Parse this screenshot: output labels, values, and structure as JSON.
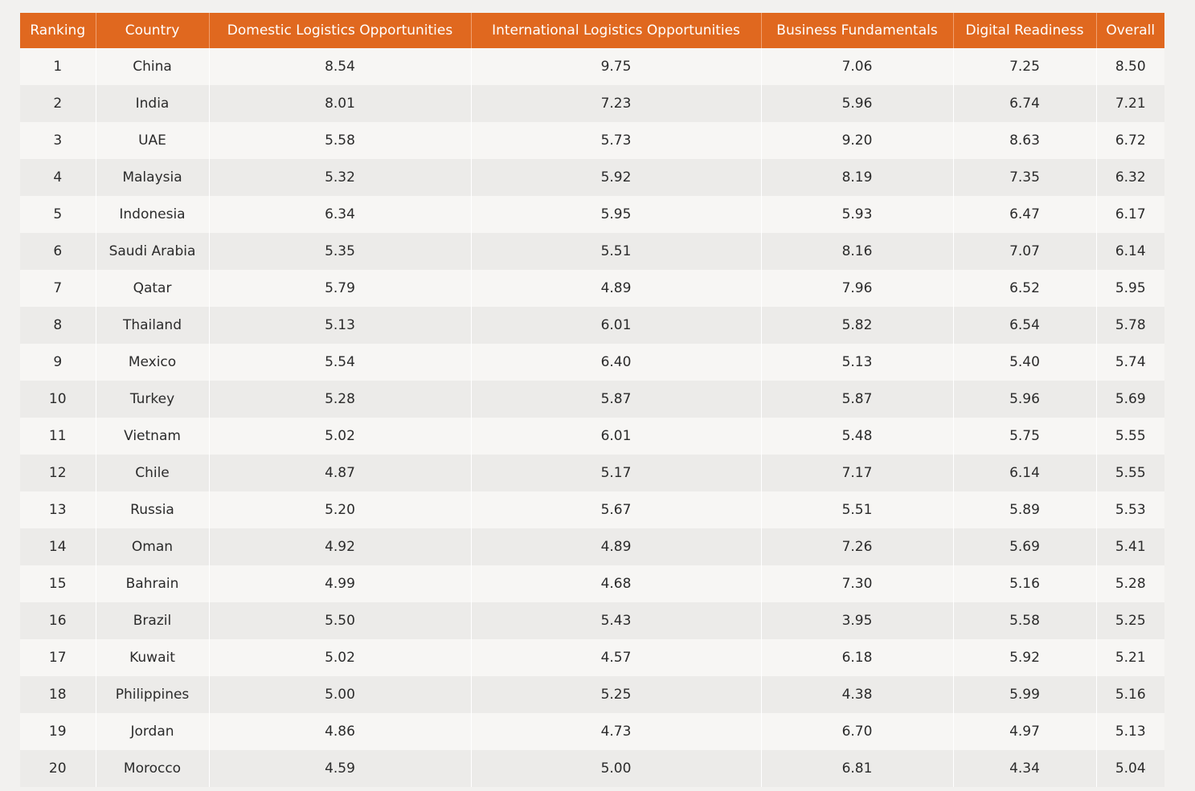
{
  "table": {
    "headers": [
      "Ranking",
      "Country",
      "Domestic Logistics Opportunities",
      "International Logistics Opportunities",
      "Business Fundamentals",
      "Digital Readiness",
      "Overall"
    ],
    "rows": [
      [
        "1",
        "China",
        "8.54",
        "9.75",
        "7.06",
        "7.25",
        "8.50"
      ],
      [
        "2",
        "India",
        "8.01",
        "7.23",
        "5.96",
        "6.74",
        "7.21"
      ],
      [
        "3",
        "UAE",
        "5.58",
        "5.73",
        "9.20",
        "8.63",
        "6.72"
      ],
      [
        "4",
        "Malaysia",
        "5.32",
        "5.92",
        "8.19",
        "7.35",
        "6.32"
      ],
      [
        "5",
        "Indonesia",
        "6.34",
        "5.95",
        "5.93",
        "6.47",
        "6.17"
      ],
      [
        "6",
        "Saudi Arabia",
        "5.35",
        "5.51",
        "8.16",
        "7.07",
        "6.14"
      ],
      [
        "7",
        "Qatar",
        "5.79",
        "4.89",
        "7.96",
        "6.52",
        "5.95"
      ],
      [
        "8",
        "Thailand",
        "5.13",
        "6.01",
        "5.82",
        "6.54",
        "5.78"
      ],
      [
        "9",
        "Mexico",
        "5.54",
        "6.40",
        "5.13",
        "5.40",
        "5.74"
      ],
      [
        "10",
        "Turkey",
        "5.28",
        "5.87",
        "5.87",
        "5.96",
        "5.69"
      ],
      [
        "11",
        "Vietnam",
        "5.02",
        "6.01",
        "5.48",
        "5.75",
        "5.55"
      ],
      [
        "12",
        "Chile",
        "4.87",
        "5.17",
        "7.17",
        "6.14",
        "5.55"
      ],
      [
        "13",
        "Russia",
        "5.20",
        "5.67",
        "5.51",
        "5.89",
        "5.53"
      ],
      [
        "14",
        "Oman",
        "4.92",
        "4.89",
        "7.26",
        "5.69",
        "5.41"
      ],
      [
        "15",
        "Bahrain",
        "4.99",
        "4.68",
        "7.30",
        "5.16",
        "5.28"
      ],
      [
        "16",
        "Brazil",
        "5.50",
        "5.43",
        "3.95",
        "5.58",
        "5.25"
      ],
      [
        "17",
        "Kuwait",
        "5.02",
        "4.57",
        "6.18",
        "5.92",
        "5.21"
      ],
      [
        "18",
        "Philippines",
        "5.00",
        "5.25",
        "4.38",
        "5.99",
        "5.16"
      ],
      [
        "19",
        "Jordan",
        "4.86",
        "4.73",
        "6.70",
        "4.97",
        "5.13"
      ],
      [
        "20",
        "Morocco",
        "4.59",
        "5.00",
        "6.81",
        "4.34",
        "5.04"
      ]
    ]
  },
  "colors": {
    "header_bg": "#e0681f",
    "header_text": "#ffffff",
    "row_light": "#f7f6f4",
    "row_dark": "#ecebe9"
  }
}
